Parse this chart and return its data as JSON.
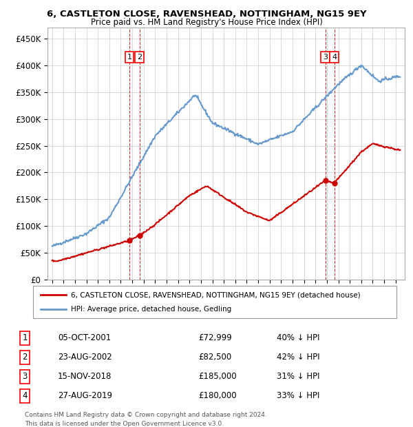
{
  "title1": "6, CASTLETON CLOSE, RAVENSHEAD, NOTTINGHAM, NG15 9EY",
  "title2": "Price paid vs. HM Land Registry's House Price Index (HPI)",
  "ylabel_ticks": [
    "£0",
    "£50K",
    "£100K",
    "£150K",
    "£200K",
    "£250K",
    "£300K",
    "£350K",
    "£400K",
    "£450K"
  ],
  "ytick_values": [
    0,
    50000,
    100000,
    150000,
    200000,
    250000,
    300000,
    350000,
    400000,
    450000
  ],
  "xlim": [
    1994.6,
    2025.8
  ],
  "ylim": [
    0,
    470000
  ],
  "sale_color": "#cc0000",
  "hpi_color": "#6699cc",
  "sale_label": "6, CASTLETON CLOSE, RAVENSHEAD, NOTTINGHAM, NG15 9EY (detached house)",
  "hpi_label": "HPI: Average price, detached house, Gedling",
  "transactions": [
    {
      "num": 1,
      "date": "05-OCT-2001",
      "price": 72999,
      "year": 2001.76,
      "pct": "40%",
      "dir": "↓"
    },
    {
      "num": 2,
      "date": "23-AUG-2002",
      "price": 82500,
      "year": 2002.64,
      "pct": "42%",
      "dir": "↓"
    },
    {
      "num": 3,
      "date": "15-NOV-2018",
      "price": 185000,
      "year": 2018.87,
      "pct": "31%",
      "dir": "↓"
    },
    {
      "num": 4,
      "date": "27-AUG-2019",
      "price": 180000,
      "year": 2019.65,
      "pct": "33%",
      "dir": "↓"
    }
  ],
  "footer1": "Contains HM Land Registry data © Crown copyright and database right 2024.",
  "footer2": "This data is licensed under the Open Government Licence v3.0.",
  "background_color": "#ffffff",
  "grid_color": "#cccccc"
}
